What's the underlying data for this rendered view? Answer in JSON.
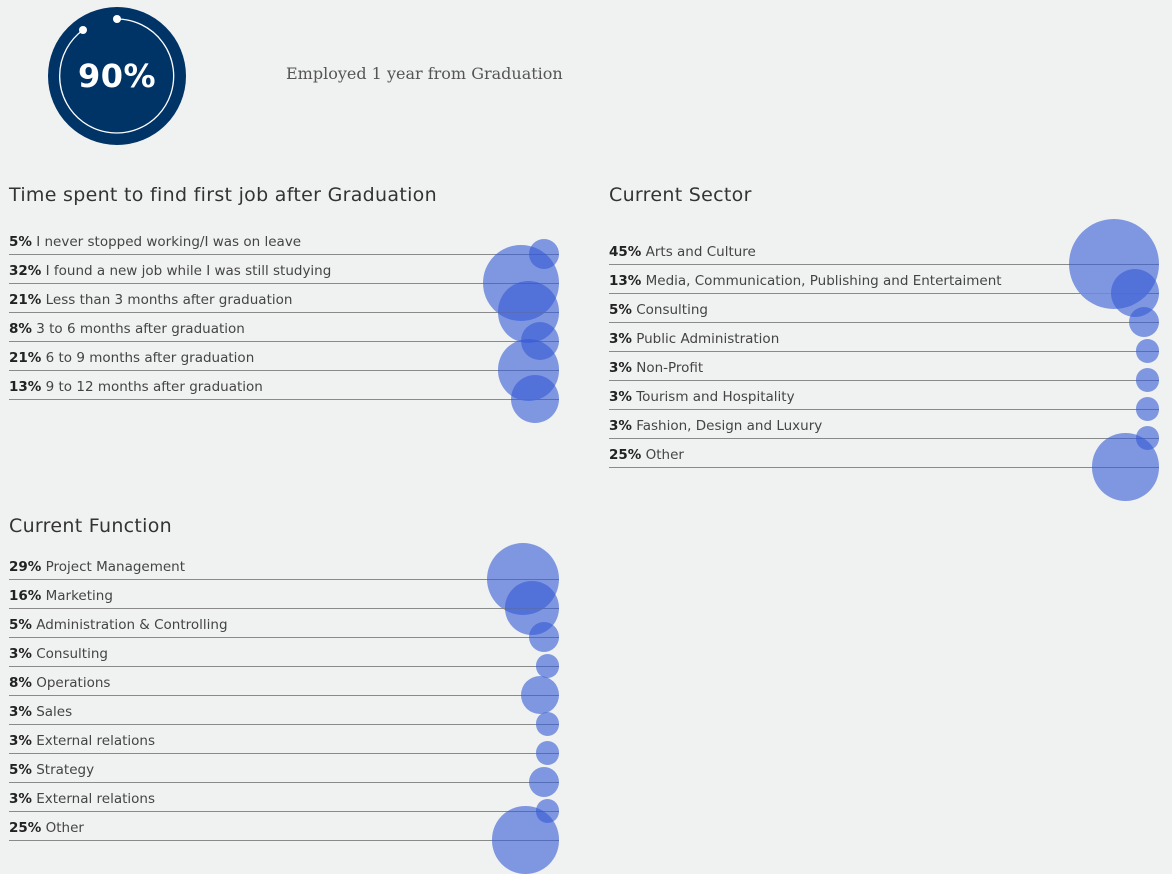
{
  "header": {
    "badge_value": "90%",
    "caption": "Employed 1 year from Graduation"
  },
  "colors": {
    "badge": "#003366",
    "bubble": "#345ad6",
    "background": "#f0f2f1"
  },
  "chart_data": [
    {
      "type": "bubble-list",
      "title": "Time spent to find first job after Graduation",
      "unit": "%",
      "items": [
        {
          "value": 5,
          "pct": "5%",
          "label": "I never stopped working/I was on leave"
        },
        {
          "value": 32,
          "pct": "32%",
          "label": "I found a new job while I was still studying"
        },
        {
          "value": 21,
          "pct": "21%",
          "label": "Less than 3 months after graduation"
        },
        {
          "value": 8,
          "pct": "8%",
          "label": "3 to 6 months after graduation"
        },
        {
          "value": 21,
          "pct": "21%",
          "label": "6 to 9 months after graduation"
        },
        {
          "value": 13,
          "pct": "13%",
          "label": "9 to 12 months after graduation"
        }
      ]
    },
    {
      "type": "bubble-list",
      "title": "Current Sector",
      "unit": "%",
      "items": [
        {
          "value": 45,
          "pct": "45%",
          "label": "Arts and Culture"
        },
        {
          "value": 13,
          "pct": "13%",
          "label": "Media, Communication, Publishing and Entertaiment"
        },
        {
          "value": 5,
          "pct": "5%",
          "label": "Consulting"
        },
        {
          "value": 3,
          "pct": "3%",
          "label": "Public Administration"
        },
        {
          "value": 3,
          "pct": "3%",
          "label": "Non-Profit"
        },
        {
          "value": 3,
          "pct": "3%",
          "label": "Tourism and Hospitality"
        },
        {
          "value": 3,
          "pct": "3%",
          "label": "Fashion, Design and Luxury"
        },
        {
          "value": 25,
          "pct": "25%",
          "label": "Other"
        }
      ]
    },
    {
      "type": "bubble-list",
      "title": "Current Function",
      "unit": "%",
      "items": [
        {
          "value": 29,
          "pct": "29%",
          "label": "Project Management"
        },
        {
          "value": 16,
          "pct": "16%",
          "label": "Marketing"
        },
        {
          "value": 5,
          "pct": "5%",
          "label": "Administration & Controlling"
        },
        {
          "value": 3,
          "pct": "3%",
          "label": "Consulting"
        },
        {
          "value": 8,
          "pct": "8%",
          "label": "Operations"
        },
        {
          "value": 3,
          "pct": "3%",
          "label": "Sales"
        },
        {
          "value": 3,
          "pct": "3%",
          "label": "External relations"
        },
        {
          "value": 5,
          "pct": "5%",
          "label": "Strategy"
        },
        {
          "value": 3,
          "pct": "3%",
          "label": "External relations"
        },
        {
          "value": 25,
          "pct": "25%",
          "label": "Other"
        }
      ]
    }
  ]
}
